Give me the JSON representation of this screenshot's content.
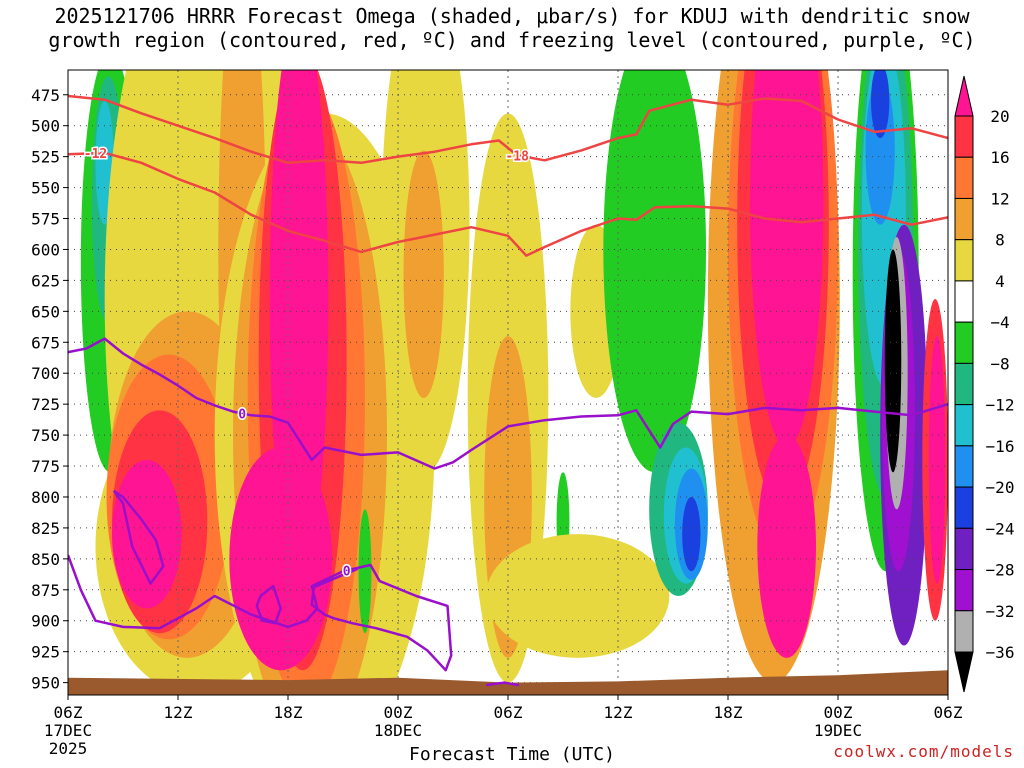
{
  "title_line1": "2025121706 HRRR Forecast Omega (shaded, μbar/s) for KDUJ with dendritic snow",
  "title_line2": "growth region (contoured, red, ºC) and freezing level (contoured, purple, ºC)",
  "credit": "coolwx.com/models",
  "chart_data": {
    "type": "heatmap",
    "xlabel": "Forecast Time (UTC)",
    "ylabel": "",
    "x_ticks": [
      {
        "hours": 0,
        "label": "06Z",
        "sub1": "17DEC",
        "sub2": "2025"
      },
      {
        "hours": 6,
        "label": "12Z",
        "sub1": "",
        "sub2": ""
      },
      {
        "hours": 12,
        "label": "18Z",
        "sub1": "",
        "sub2": ""
      },
      {
        "hours": 18,
        "label": "00Z",
        "sub1": "18DEC",
        "sub2": ""
      },
      {
        "hours": 24,
        "label": "06Z",
        "sub1": "",
        "sub2": ""
      },
      {
        "hours": 30,
        "label": "12Z",
        "sub1": "",
        "sub2": ""
      },
      {
        "hours": 36,
        "label": "18Z",
        "sub1": "",
        "sub2": ""
      },
      {
        "hours": 42,
        "label": "00Z",
        "sub1": "19DEC",
        "sub2": ""
      },
      {
        "hours": 48,
        "label": "06Z",
        "sub1": "",
        "sub2": ""
      }
    ],
    "y_ticks": [
      "475",
      "500",
      "525",
      "550",
      "575",
      "600",
      "625",
      "650",
      "675",
      "700",
      "725",
      "750",
      "775",
      "800",
      "825",
      "850",
      "875",
      "900",
      "925",
      "950"
    ],
    "xlim": [
      0,
      48
    ],
    "ylim_mb": [
      455,
      960
    ],
    "grid": true,
    "colorbar": {
      "labels": [
        "20",
        "16",
        "12",
        "8",
        "4",
        "−4",
        "−8",
        "−12",
        "−16",
        "−20",
        "−24",
        "−28",
        "−32",
        "−36"
      ],
      "colors": [
        "#ff1493",
        "#ff3344",
        "#ff7733",
        "#f0a030",
        "#e8d840",
        "#ffffff",
        "#22cc22",
        "#20b880",
        "#20c0d0",
        "#2090f0",
        "#1a40e0",
        "#7020c0",
        "#a010d0",
        "#b0b0b0",
        "#000000"
      ]
    },
    "series": [
      {
        "name": "dendritic",
        "color": "#ee4444",
        "contours": [
          {
            "label": "-12",
            "label_at_hours": 1.5,
            "points": [
              [
                0,
                523
              ],
              [
                2,
                522
              ],
              [
                4,
                530
              ],
              [
                6,
                543
              ],
              [
                8,
                554
              ],
              [
                10,
                572
              ],
              [
                12,
                585
              ],
              [
                14,
                593
              ],
              [
                16,
                602
              ],
              [
                18,
                594
              ],
              [
                20,
                588
              ],
              [
                22,
                582
              ],
              [
                24,
                589
              ],
              [
                25,
                605
              ],
              [
                26,
                598
              ],
              [
                28,
                585
              ],
              [
                30,
                575
              ],
              [
                31,
                576
              ],
              [
                32,
                566
              ],
              [
                34,
                565
              ],
              [
                36,
                567
              ],
              [
                38,
                575
              ],
              [
                40,
                578
              ],
              [
                42,
                575
              ],
              [
                44,
                572
              ],
              [
                46,
                580
              ],
              [
                48,
                574
              ]
            ]
          },
          {
            "label": "-18",
            "label_at_hours": 24.5,
            "points": [
              [
                0,
                476
              ],
              [
                2,
                479
              ],
              [
                4,
                490
              ],
              [
                6,
                500
              ],
              [
                8,
                510
              ],
              [
                10,
                521
              ],
              [
                12,
                530
              ],
              [
                14,
                528
              ],
              [
                16,
                530
              ],
              [
                18,
                525
              ],
              [
                20,
                521
              ],
              [
                22,
                515
              ],
              [
                23.5,
                512
              ],
              [
                24.5,
                524
              ],
              [
                26,
                528
              ],
              [
                28,
                520
              ],
              [
                30,
                510
              ],
              [
                31,
                507
              ],
              [
                31.7,
                488
              ],
              [
                34,
                479
              ],
              [
                36,
                483
              ],
              [
                38,
                478
              ],
              [
                40,
                480
              ],
              [
                42,
                495
              ],
              [
                44,
                505
              ],
              [
                46,
                502
              ],
              [
                48,
                510
              ]
            ]
          }
        ]
      },
      {
        "name": "freezing",
        "color": "#9910cc",
        "contours": [
          {
            "label": "0",
            "label_at_hours": 9.5,
            "points": [
              [
                0,
                683
              ],
              [
                1,
                680
              ],
              [
                2,
                672
              ],
              [
                3,
                684
              ],
              [
                4,
                693
              ],
              [
                5,
                701
              ],
              [
                6,
                710
              ],
              [
                7,
                720
              ],
              [
                8,
                726
              ],
              [
                9,
                731
              ],
              [
                10,
                734
              ],
              [
                11,
                735
              ],
              [
                12,
                740
              ],
              [
                13.3,
                770
              ],
              [
                14,
                760
              ],
              [
                16,
                766
              ],
              [
                18,
                764
              ],
              [
                20,
                777
              ],
              [
                21,
                772
              ],
              [
                22,
                762
              ],
              [
                24,
                743
              ],
              [
                26,
                738
              ],
              [
                28,
                735
              ],
              [
                30,
                734
              ],
              [
                31,
                730
              ],
              [
                32.3,
                760
              ],
              [
                33,
                741
              ],
              [
                34,
                731
              ],
              [
                36,
                733
              ],
              [
                38,
                728
              ],
              [
                40,
                730
              ],
              [
                42,
                728
              ],
              [
                44,
                731
              ],
              [
                46,
                734
              ],
              [
                48,
                725
              ]
            ]
          },
          {
            "label": "0",
            "label_at_hours": 15.2,
            "points": [
              [
                0,
                847
              ],
              [
                0.7,
                875
              ],
              [
                1.5,
                900
              ],
              [
                3,
                905
              ],
              [
                5,
                906
              ],
              [
                6,
                898
              ],
              [
                7,
                890
              ],
              [
                8,
                880
              ],
              [
                10,
                895
              ],
              [
                12,
                905
              ],
              [
                13,
                900
              ],
              [
                13.6,
                890
              ],
              [
                13.3,
                872
              ],
              [
                15,
                860
              ],
              [
                16.5,
                855
              ],
              [
                17,
                868
              ],
              [
                19,
                880
              ],
              [
                20.7,
                888
              ],
              [
                20.9,
                928
              ],
              [
                20.6,
                940
              ],
              [
                19.6,
                924
              ],
              [
                18.5,
                913
              ],
              [
                16.8,
                906
              ],
              [
                15.5,
                902
              ],
              [
                15,
                900
              ],
              [
                14.5,
                898
              ],
              [
                14,
                895
              ],
              [
                13.3,
                887
              ],
              [
                13.4,
                873
              ],
              [
                14.5,
                866
              ],
              [
                15.8,
                858
              ]
            ]
          },
          {
            "label": "",
            "label_at_hours": 0,
            "points": [
              [
                2.5,
                795
              ],
              [
                3,
                805
              ],
              [
                3.5,
                840
              ],
              [
                4.5,
                870
              ],
              [
                5.2,
                856
              ],
              [
                4.8,
                835
              ],
              [
                4,
                818
              ],
              [
                3,
                800
              ],
              [
                2.5,
                795
              ]
            ]
          },
          {
            "label": "",
            "label_at_hours": 0,
            "points": [
              [
                10.5,
                880
              ],
              [
                11.2,
                872
              ],
              [
                11.6,
                890
              ],
              [
                11.3,
                902
              ],
              [
                10.6,
                900
              ],
              [
                10.3,
                888
              ],
              [
                10.5,
                880
              ]
            ]
          },
          {
            "label": "",
            "label_at_hours": 0,
            "points": [
              [
                22.8,
                952
              ],
              [
                23.8,
                950
              ],
              [
                24.6,
                952
              ]
            ]
          }
        ]
      }
    ]
  }
}
